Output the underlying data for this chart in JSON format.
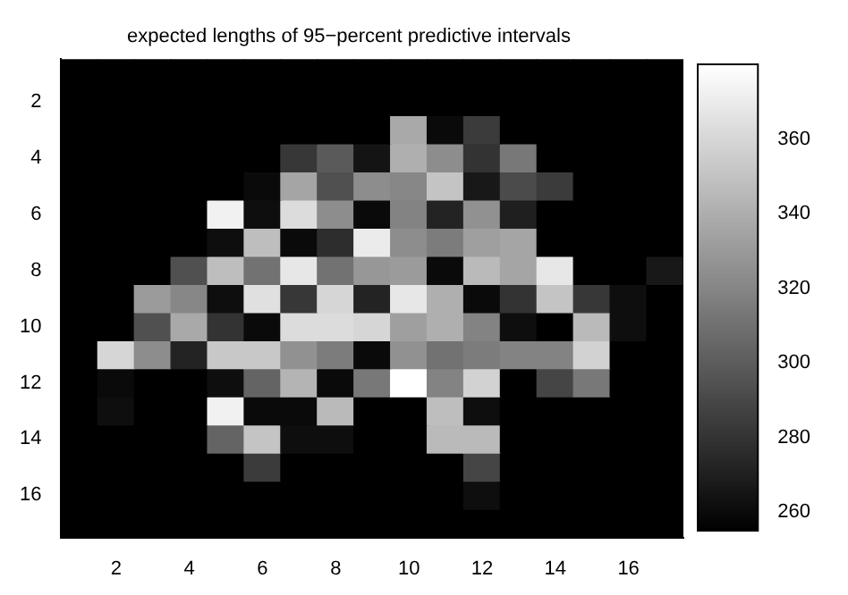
{
  "chart_data": {
    "type": "heatmap",
    "title": "expected lengths of 95−percent predictive intervals",
    "categories": [
      null,
      "2",
      null,
      "4",
      null,
      "6",
      null,
      "8",
      null,
      "10",
      null,
      "12",
      null,
      "14",
      null,
      "16",
      null
    ],
    "y_categories": [
      null,
      "2",
      null,
      "4",
      null,
      "6",
      null,
      "8",
      null,
      "10",
      null,
      "12",
      null,
      "14",
      null,
      "16",
      null
    ],
    "cells": [
      [
        255,
        255,
        255,
        255,
        255,
        255,
        255,
        255,
        255,
        255,
        255,
        255,
        255,
        255,
        255,
        255,
        255
      ],
      [
        255,
        255,
        255,
        255,
        255,
        255,
        255,
        255,
        255,
        255,
        255,
        255,
        255,
        255,
        255,
        255,
        255
      ],
      [
        255,
        255,
        255,
        255,
        255,
        255,
        255,
        255,
        255,
        338,
        260,
        284,
        255,
        255,
        255,
        255,
        255
      ],
      [
        255,
        255,
        255,
        255,
        255,
        255,
        282,
        299,
        265,
        341,
        324,
        280,
        314,
        255,
        255,
        255,
        255
      ],
      [
        255,
        255,
        255,
        255,
        255,
        260,
        336,
        294,
        324,
        321,
        351,
        267,
        292,
        284,
        255,
        255,
        255
      ],
      [
        255,
        255,
        255,
        255,
        373,
        262,
        363,
        324,
        260,
        319,
        272,
        326,
        270,
        255,
        255,
        255,
        255
      ],
      [
        255,
        255,
        255,
        255,
        262,
        348,
        260,
        277,
        370,
        324,
        316,
        333,
        336,
        255,
        255,
        255,
        255
      ],
      [
        255,
        255,
        255,
        294,
        348,
        311,
        368,
        311,
        329,
        331,
        260,
        346,
        336,
        368,
        255,
        255,
        267
      ],
      [
        255,
        255,
        331,
        321,
        262,
        365,
        282,
        360,
        272,
        368,
        341,
        260,
        280,
        351,
        282,
        262,
        255
      ],
      [
        255,
        255,
        294,
        338,
        280,
        260,
        363,
        363,
        360,
        333,
        341,
        319,
        262,
        255,
        346,
        262,
        255
      ],
      [
        255,
        360,
        324,
        272,
        353,
        353,
        326,
        316,
        260,
        326,
        311,
        316,
        319,
        319,
        358,
        255,
        255
      ],
      [
        255,
        260,
        255,
        255,
        262,
        304,
        343,
        260,
        314,
        380,
        319,
        358,
        255,
        289,
        314,
        255,
        255
      ],
      [
        255,
        262,
        255,
        255,
        373,
        260,
        260,
        346,
        255,
        255,
        348,
        262,
        255,
        255,
        255,
        255,
        255
      ],
      [
        255,
        255,
        255,
        255,
        304,
        351,
        262,
        262,
        255,
        255,
        346,
        346,
        255,
        255,
        255,
        255,
        255
      ],
      [
        255,
        255,
        255,
        255,
        255,
        284,
        255,
        255,
        255,
        255,
        255,
        289,
        255,
        255,
        255,
        255,
        255
      ],
      [
        255,
        255,
        255,
        255,
        255,
        255,
        255,
        255,
        255,
        255,
        255,
        262,
        255,
        255,
        255,
        255,
        255
      ],
      [
        255,
        255,
        255,
        255,
        255,
        255,
        255,
        255,
        255,
        255,
        255,
        255,
        255,
        255,
        255,
        255,
        255
      ]
    ],
    "clim": [
      255,
      380
    ],
    "cticks": [
      260,
      280,
      300,
      320,
      340,
      360
    ]
  }
}
